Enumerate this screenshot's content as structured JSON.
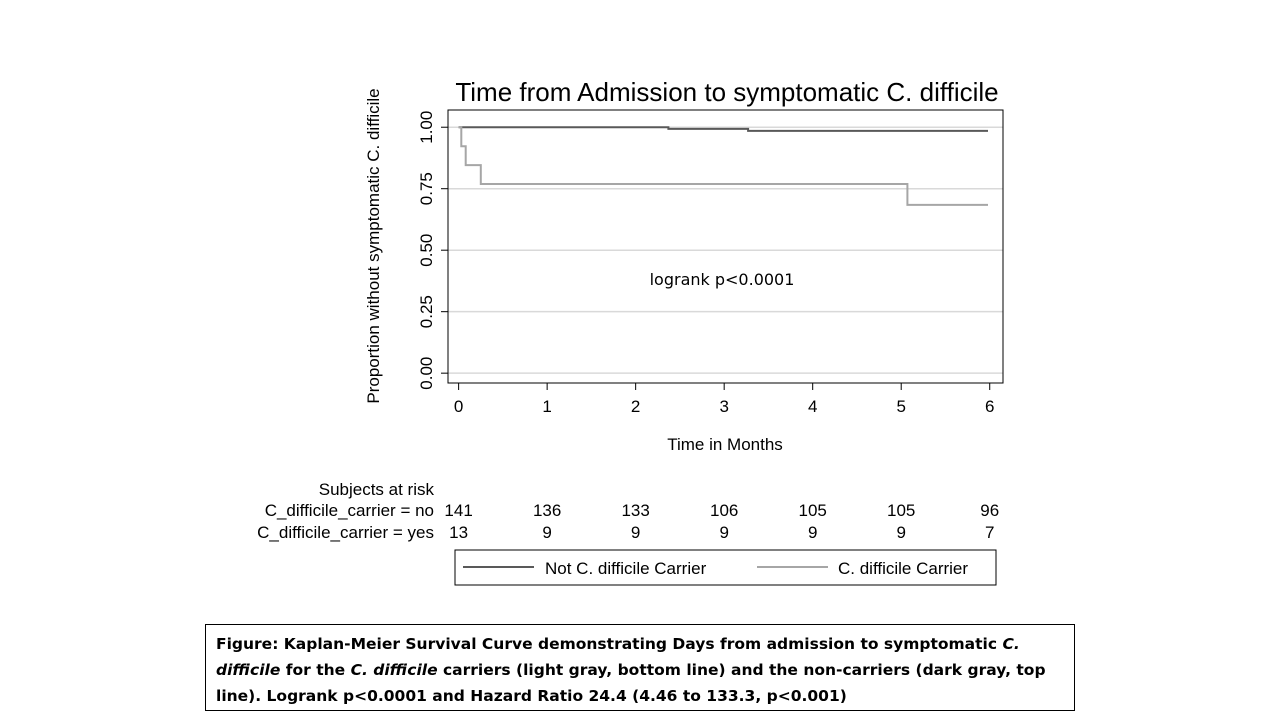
{
  "chart_data": {
    "type": "line",
    "title": "Time from Admission to symptomatic C. difficile",
    "xlabel": "Time in Months",
    "ylabel": "Proportion without symptomatic C. difficile",
    "xlim": [
      -0.12,
      6.15
    ],
    "ylim": [
      -0.04,
      1.07
    ],
    "x_ticks": [
      0,
      1,
      2,
      3,
      4,
      5,
      6
    ],
    "y_ticks": [
      0.0,
      0.25,
      0.5,
      0.75,
      1.0
    ],
    "y_tick_labels": [
      "0.00",
      "0.25",
      "0.50",
      "0.75",
      "1.00"
    ],
    "grid": "horizontal",
    "step": true,
    "series": [
      {
        "name": "Not C. difficile Carrier",
        "color": "#595959",
        "points": [
          [
            0,
            1.0
          ],
          [
            2.37,
            1.0
          ],
          [
            2.37,
            0.993
          ],
          [
            3.27,
            0.993
          ],
          [
            3.27,
            0.985
          ],
          [
            5.98,
            0.985
          ]
        ]
      },
      {
        "name": "C. difficile Carrier",
        "color": "#a6a6a6",
        "points": [
          [
            0,
            1.0
          ],
          [
            0.03,
            1.0
          ],
          [
            0.03,
            0.923
          ],
          [
            0.08,
            0.923
          ],
          [
            0.08,
            0.846
          ],
          [
            0.25,
            0.846
          ],
          [
            0.25,
            0.769
          ],
          [
            5.07,
            0.769
          ],
          [
            5.07,
            0.684
          ],
          [
            5.98,
            0.684
          ]
        ]
      }
    ],
    "annotation": "logrank p<0.0001",
    "risk_table": {
      "header": "Subjects at risk",
      "rows": [
        {
          "label": "C_difficile_carrier = no",
          "values": [
            "141",
            "136",
            "133",
            "106",
            "105",
            "105",
            "96"
          ]
        },
        {
          "label": "C_difficile_carrier = yes",
          "values": [
            "13",
            "9",
            "9",
            "9",
            "9",
            "9",
            "7"
          ]
        }
      ]
    },
    "legend": {
      "placement": "bottom",
      "items": [
        {
          "label": "Not C. difficile Carrier",
          "color": "#595959"
        },
        {
          "label": "C. difficile Carrier",
          "color": "#a6a6a6"
        }
      ]
    }
  },
  "caption": {
    "parts": [
      {
        "text": "Figure: Kaplan-Meier  Survival Curve demonstrating  Days from admission to symptomatic ",
        "italic": false
      },
      {
        "text": "C. difficile",
        "italic": true
      },
      {
        "text": " for the ",
        "italic": false
      },
      {
        "text": "C. difficile",
        "italic": true
      },
      {
        "text": " carriers (light gray, bottom line) and the non-carriers  (dark gray, top line). Logrank p<0.0001 and Hazard Ratio 24.4 (4.46 to 133.3, p<0.001)",
        "italic": false
      }
    ]
  }
}
